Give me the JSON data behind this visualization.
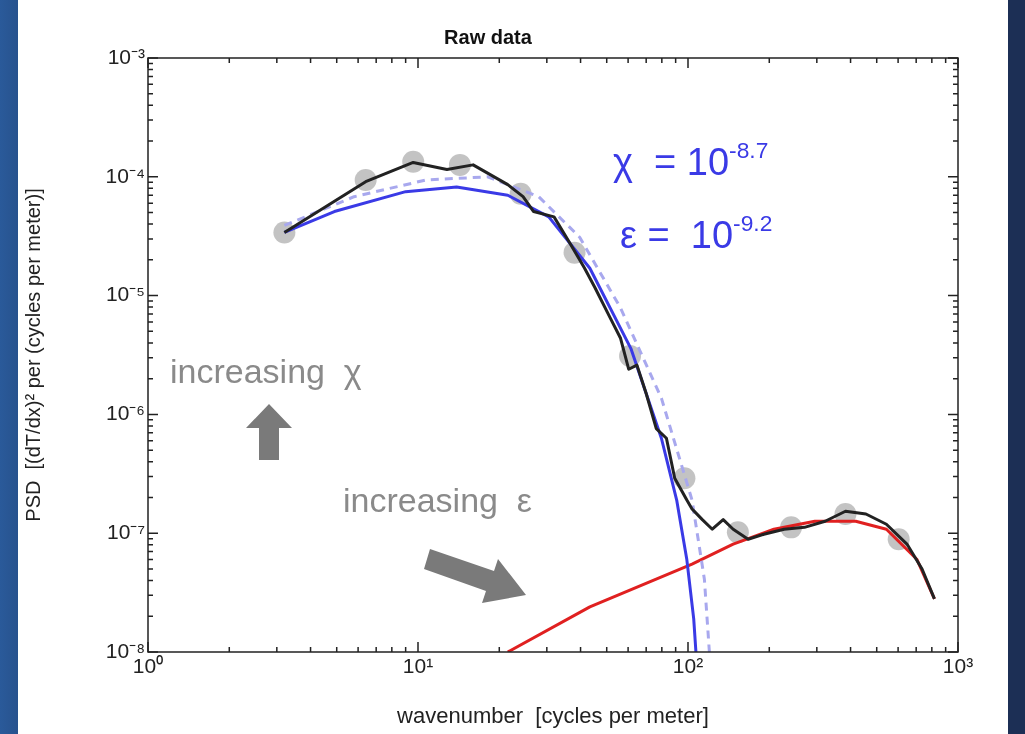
{
  "chart_data": {
    "type": "line",
    "title": "Raw data",
    "xlabel": "wavenumber  [cycles per meter]",
    "ylabel": "PSD  [(dT/dx)² per (cycles per meter)]",
    "log": "xy",
    "grid": false,
    "legend": false,
    "xlim": [
      1,
      1000
    ],
    "xticks": [
      {
        "value": 1,
        "label": "10⁰"
      },
      {
        "value": 10,
        "label": "10¹"
      },
      {
        "value": 100,
        "label": "10²"
      },
      {
        "value": 1000,
        "label": "10³"
      }
    ],
    "ylim": [
      1e-08,
      0.001
    ],
    "yticks": [
      {
        "value": 1e-08,
        "label": "10⁻⁸"
      },
      {
        "value": 1e-07,
        "label": "10⁻⁷"
      },
      {
        "value": 1e-06,
        "label": "10⁻⁶"
      },
      {
        "value": 1e-05,
        "label": "10⁻⁵"
      },
      {
        "value": 0.0001,
        "label": "10⁻⁴"
      },
      {
        "value": 0.001,
        "label": "10⁻³"
      }
    ],
    "annotations": [
      "χ  = 10$^{-8.7}$",
      "ε =  10$^{-9.2}$",
      "increasing  χ",
      "increasing  ε"
    ],
    "series": [
      {
        "type": "scatter",
        "color": "#b4b4b4",
        "marker": "circle",
        "x": [
          3.2,
          6.4,
          9.6,
          14.3,
          24,
          38,
          61,
          97,
          153,
          241,
          383,
          603
        ],
        "values": [
          3.4e-05,
          9.4e-05,
          0.000134,
          0.000126,
          7.2e-05,
          2.3e-05,
          3.1e-06,
          2.9e-07,
          1.02e-07,
          1.12e-07,
          1.45e-07,
          8.9e-08
        ]
      },
      {
        "color": "#222222",
        "marker": "none",
        "line_style": "solid",
        "x": [
          3.2,
          6.4,
          9.6,
          12.8,
          16,
          21.5,
          24.5,
          26.8,
          31.9,
          36.4,
          41.4,
          45.2,
          51.5,
          56.2,
          60.3,
          64.7,
          70,
          76.3,
          83.2,
          89.3,
          99,
          103.5,
          113,
          123,
          135,
          147,
          167,
          191,
          227,
          270,
          322,
          383,
          456,
          543,
          647,
          736,
          818
        ],
        "values": [
          3.4e-05,
          9.1e-05,
          0.000132,
          0.000115,
          0.000126,
          8.6e-05,
          6.8e-05,
          5.1e-05,
          4.6e-05,
          2.8e-05,
          1.7e-05,
          1.17e-05,
          6.5e-06,
          4.4e-06,
          2.4e-06,
          2.6e-06,
          1.5e-06,
          7.6e-07,
          6.3e-07,
          2.9e-07,
          1.9e-07,
          1.6e-07,
          1.3e-07,
          1.08e-07,
          1.3e-07,
          1.08e-07,
          8.9e-08,
          9.8e-08,
          1.08e-07,
          1.12e-07,
          1.26e-07,
          1.53e-07,
          1.45e-07,
          1.19e-07,
          8.1e-08,
          5e-08,
          2.8e-08
        ]
      },
      {
        "color": "#a8a8ee",
        "marker": "none",
        "line_style": "dashed",
        "x": [
          3.2,
          5.8,
          10.7,
          18.1,
          28,
          39.7,
          56.2,
          79.7,
          103.5,
          115,
          120
        ],
        "values": [
          3.9e-05,
          6.8e-05,
          9.4e-05,
          0.0001,
          6.8e-05,
          3.1e-05,
          7.9e-06,
          1.37e-06,
          1.9e-07,
          4.1e-08,
          1e-08
        ]
      },
      {
        "color": "#3a3ae6",
        "marker": "none",
        "line_style": "solid",
        "x": [
          3.2,
          4.9,
          9.0,
          13.9,
          21.5,
          30.5,
          43.3,
          61.4,
          79.7,
          90.8,
          99,
          105,
          107
        ],
        "values": [
          3.4e-05,
          5.1e-05,
          7.5e-05,
          8.2e-05,
          7e-05,
          4.6e-05,
          1.7e-05,
          3.6e-06,
          6.3e-07,
          1.9e-07,
          6e-08,
          1.9e-08,
          1e-08
        ]
      },
      {
        "color": "#e02020",
        "marker": "none",
        "line_style": "solid",
        "x": [
          21.5,
          43.3,
          103.5,
          147,
          208,
          295,
          418,
          543,
          705,
          818
        ],
        "values": [
          1e-08,
          2.4e-08,
          5.5e-08,
          8.1e-08,
          1.08e-07,
          1.26e-07,
          1.26e-07,
          1.08e-07,
          6e-08,
          2.8e-08
        ]
      }
    ]
  }
}
